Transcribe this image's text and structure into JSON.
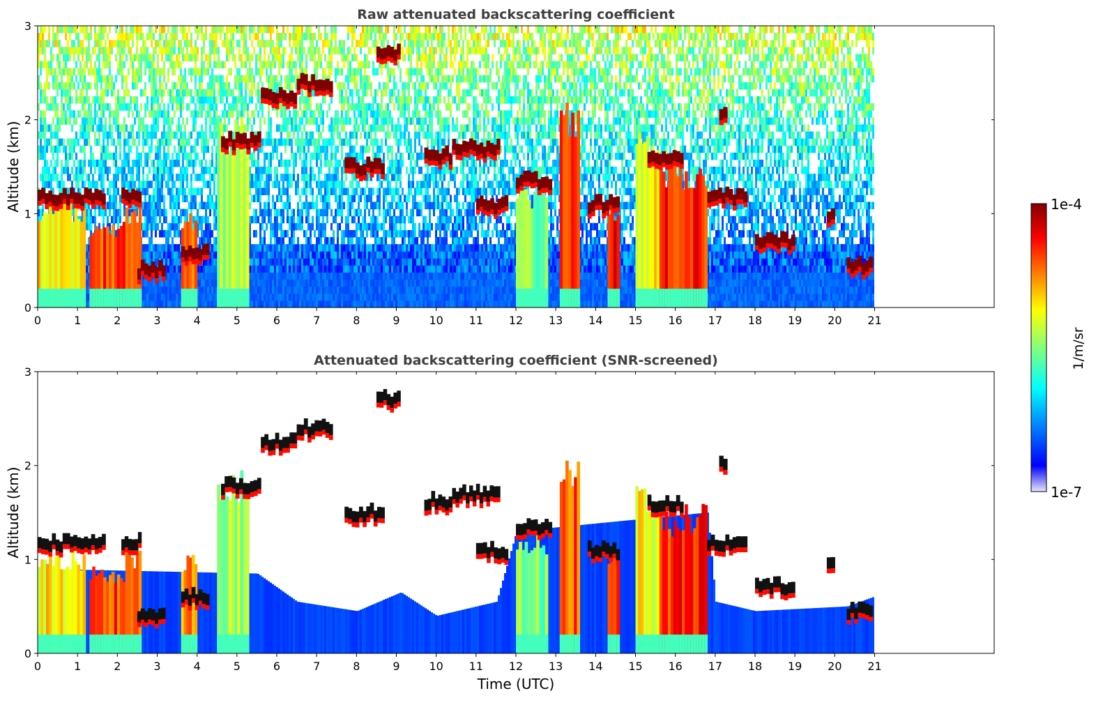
{
  "chart_data": [
    {
      "type": "heatmap",
      "title": "Raw attenuated backscattering coefficient",
      "xlabel": "",
      "ylabel": "Altitude (km)",
      "xlim": [
        0,
        24
      ],
      "ylim": [
        0,
        3
      ],
      "xticks": [
        "0",
        "1",
        "2",
        "3",
        "4",
        "5",
        "6",
        "7",
        "8",
        "9",
        "10",
        "11",
        "12",
        "13",
        "14",
        "15",
        "16",
        "17",
        "18",
        "19",
        "20",
        "21"
      ],
      "yticks": [
        "0",
        "1",
        "2",
        "3"
      ],
      "data_end_hour": 21,
      "screened": false,
      "cloud_layers": [
        {
          "t0": 0.0,
          "t1": 1.7,
          "alt": 1.18,
          "level": 1.0
        },
        {
          "t0": 2.1,
          "t1": 2.6,
          "alt": 1.2,
          "level": 1.0
        },
        {
          "t0": 2.5,
          "t1": 3.2,
          "alt": 0.4,
          "level": 1.0
        },
        {
          "t0": 3.6,
          "t1": 4.3,
          "alt": 0.6,
          "level": 0.9
        },
        {
          "t0": 4.6,
          "t1": 5.6,
          "alt": 1.78,
          "level": 1.0
        },
        {
          "t0": 5.6,
          "t1": 6.5,
          "alt": 2.25,
          "level": 1.0
        },
        {
          "t0": 6.5,
          "t1": 7.4,
          "alt": 2.4,
          "level": 1.0
        },
        {
          "t0": 8.5,
          "t1": 9.1,
          "alt": 2.72,
          "level": 1.0
        },
        {
          "t0": 7.7,
          "t1": 8.7,
          "alt": 1.5,
          "level": 1.0
        },
        {
          "t0": 9.7,
          "t1": 10.4,
          "alt": 1.62,
          "level": 1.0
        },
        {
          "t0": 10.4,
          "t1": 11.6,
          "alt": 1.7,
          "level": 1.0
        },
        {
          "t0": 11.0,
          "t1": 11.8,
          "alt": 1.1,
          "level": 0.95
        },
        {
          "t0": 12.0,
          "t1": 12.9,
          "alt": 1.35,
          "level": 0.95
        },
        {
          "t0": 13.8,
          "t1": 14.6,
          "alt": 1.1,
          "level": 0.95
        },
        {
          "t0": 15.3,
          "t1": 16.2,
          "alt": 1.6,
          "level": 1.0
        },
        {
          "t0": 16.8,
          "t1": 17.8,
          "alt": 1.18,
          "level": 1.0
        },
        {
          "t0": 17.1,
          "t1": 17.3,
          "alt": 2.05,
          "level": 1.0
        },
        {
          "t0": 18.0,
          "t1": 19.0,
          "alt": 0.72,
          "level": 1.0
        },
        {
          "t0": 19.8,
          "t1": 20.0,
          "alt": 1.0,
          "level": 1.0
        },
        {
          "t0": 20.3,
          "t1": 20.95,
          "alt": 0.45,
          "level": 1.0
        }
      ],
      "column_regions": [
        {
          "t0": 0.0,
          "t1": 1.2,
          "top": 1.1,
          "level": 0.62
        },
        {
          "t0": 1.3,
          "t1": 2.2,
          "top": 0.9,
          "level": 0.8
        },
        {
          "t0": 2.2,
          "t1": 2.6,
          "top": 1.1,
          "level": 0.72
        },
        {
          "t0": 3.6,
          "t1": 4.0,
          "top": 1.0,
          "level": 0.72
        },
        {
          "t0": 4.5,
          "t1": 5.3,
          "top": 2.0,
          "level": 0.5
        },
        {
          "t0": 12.0,
          "t1": 12.8,
          "top": 1.3,
          "level": 0.45
        },
        {
          "t0": 13.1,
          "t1": 13.6,
          "top": 2.1,
          "level": 0.78
        },
        {
          "t0": 14.3,
          "t1": 14.6,
          "top": 1.1,
          "level": 0.85
        },
        {
          "t0": 15.0,
          "t1": 15.6,
          "top": 1.8,
          "level": 0.6
        },
        {
          "t0": 15.6,
          "t1": 16.8,
          "top": 1.55,
          "level": 0.82
        }
      ]
    },
    {
      "type": "heatmap",
      "title": "Attenuated backscattering coefficient (SNR-screened)",
      "xlabel": "Time (UTC)",
      "ylabel": "Altitude (km)",
      "xlim": [
        0,
        24
      ],
      "ylim": [
        0,
        3
      ],
      "xticks": [
        "0",
        "1",
        "2",
        "3",
        "4",
        "5",
        "6",
        "7",
        "8",
        "9",
        "10",
        "11",
        "12",
        "13",
        "14",
        "15",
        "16",
        "17",
        "18",
        "19",
        "20",
        "21"
      ],
      "yticks": [
        "0",
        "1",
        "2",
        "3"
      ],
      "data_end_hour": 21,
      "screened": true,
      "screened_blue_top_km": [
        {
          "t": 0,
          "top": 0.9
        },
        {
          "t": 5.5,
          "top": 0.85
        },
        {
          "t": 6.5,
          "top": 0.55
        },
        {
          "t": 8.0,
          "top": 0.45
        },
        {
          "t": 9.1,
          "top": 0.65
        },
        {
          "t": 10.0,
          "top": 0.4
        },
        {
          "t": 11.5,
          "top": 0.55
        },
        {
          "t": 12.0,
          "top": 1.3
        },
        {
          "t": 16.8,
          "top": 1.5
        },
        {
          "t": 17.0,
          "top": 0.55
        },
        {
          "t": 18.0,
          "top": 0.45
        },
        {
          "t": 20.3,
          "top": 0.5
        },
        {
          "t": 20.95,
          "top": 0.6
        }
      ]
    }
  ],
  "colorbar": {
    "label": "1/m/sr",
    "max_label": "1e-4",
    "min_label": "1e-7",
    "scale": "log"
  },
  "colors": {
    "cloud_core": "#7f0000",
    "screened_cloud_core": "#111111",
    "background": "#ffffff",
    "title": "#404040"
  }
}
